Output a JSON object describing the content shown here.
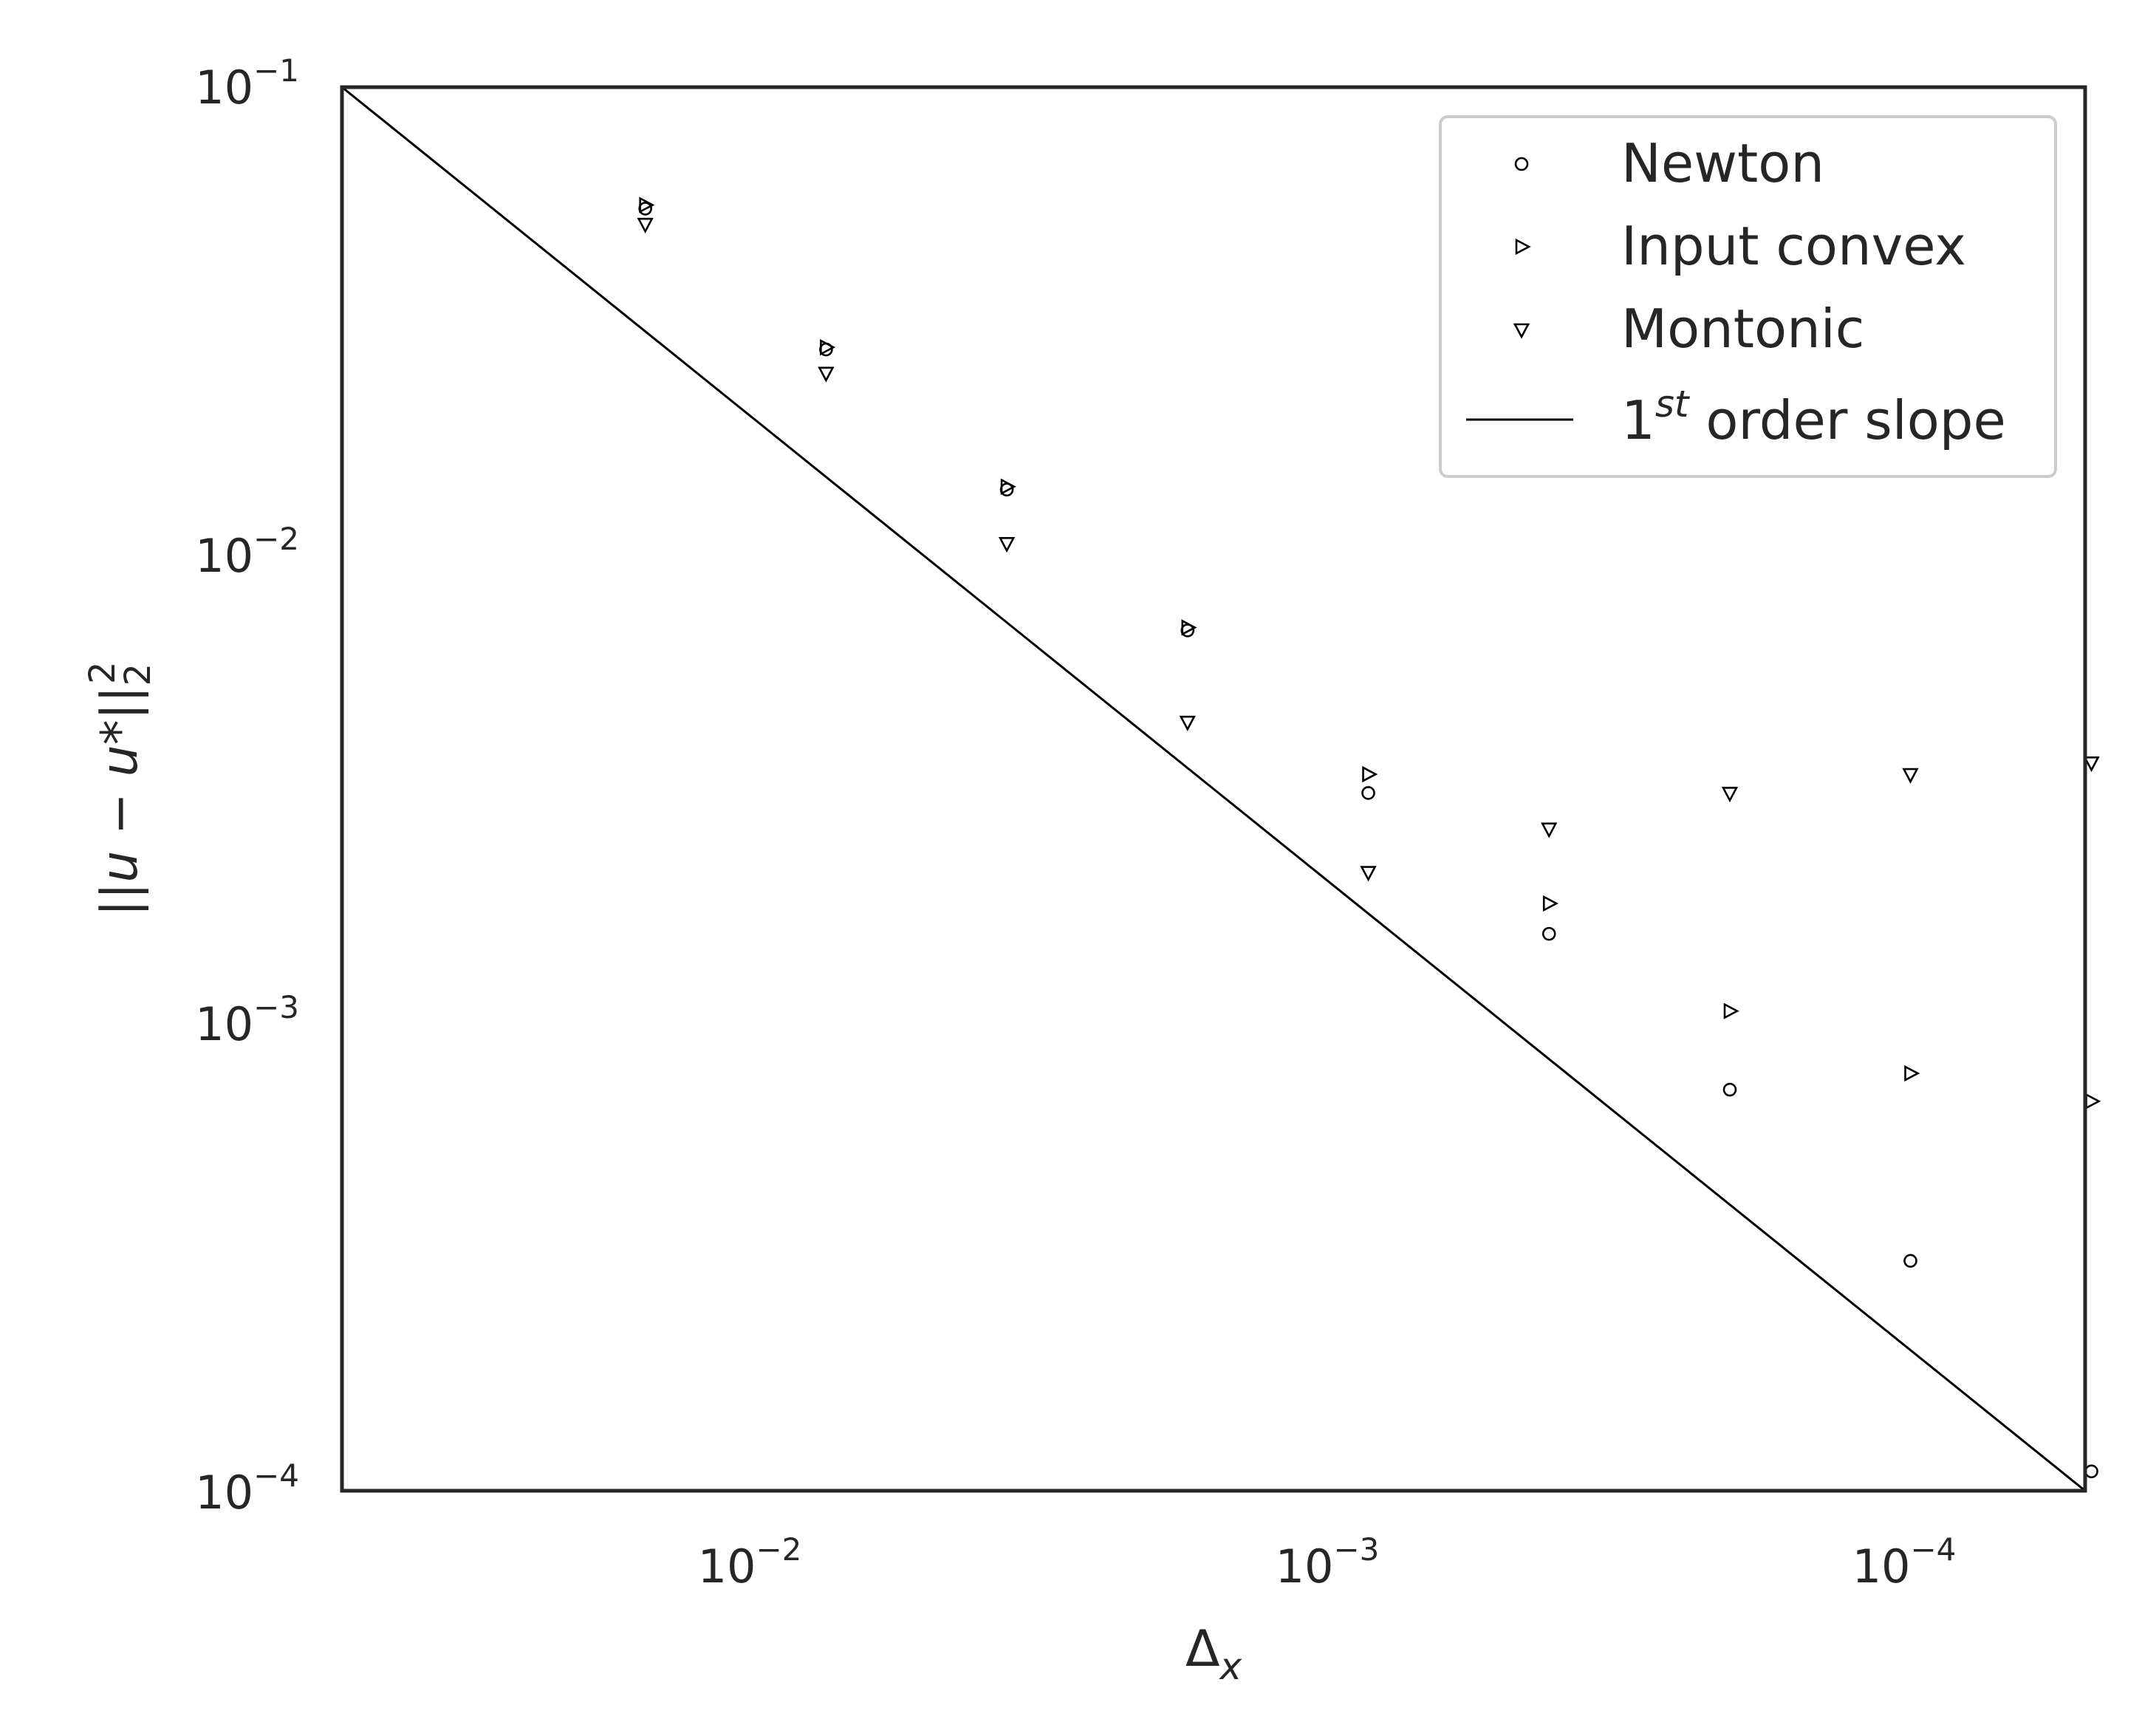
{
  "chart_data": {
    "type": "scatter",
    "title": "",
    "xlabel": {
      "base": "Δ",
      "sub": "x"
    },
    "ylabel": {
      "text": "||u − u*||",
      "sub": "2",
      "sup": "2"
    },
    "xscale": "log",
    "yscale": "log",
    "x_inverted": true,
    "xlim": [
      0.04,
      5e-05
    ],
    "ylim": [
      0.0001,
      0.1
    ],
    "grid": false,
    "legend_position": "top-right",
    "x_ticks": [
      {
        "value": 0.01,
        "base": "10",
        "exp": "−2"
      },
      {
        "value": 0.001,
        "base": "10",
        "exp": "−3"
      },
      {
        "value": 0.0001,
        "base": "10",
        "exp": "−4"
      }
    ],
    "y_ticks": [
      {
        "value": 0.1,
        "base": "10",
        "exp": "−1"
      },
      {
        "value": 0.01,
        "base": "10",
        "exp": "−2"
      },
      {
        "value": 0.001,
        "base": "10",
        "exp": "−3"
      },
      {
        "value": 0.0001,
        "base": "10",
        "exp": "−4"
      }
    ],
    "series": [
      {
        "name": "Newton",
        "marker": "circle",
        "points": [
          [
            0.0125,
            0.055
          ],
          [
            0.00625,
            0.0275
          ],
          [
            0.003125,
            0.0138
          ],
          [
            0.0015625,
            0.0069
          ],
          [
            0.00078125,
            0.0031
          ],
          [
            0.000390625,
            0.00155
          ],
          [
            0.0001953,
            0.00072
          ],
          [
            9.77e-05,
            0.00031
          ],
          [
            4.88e-05,
            0.00011
          ]
        ]
      },
      {
        "name": "Input convex",
        "marker": "triangle-right",
        "points": [
          [
            0.0125,
            0.056
          ],
          [
            0.00625,
            0.0278
          ],
          [
            0.003125,
            0.014
          ],
          [
            0.0015625,
            0.007
          ],
          [
            0.00078125,
            0.0034
          ],
          [
            0.000390625,
            0.0018
          ],
          [
            0.0001953,
            0.00106
          ],
          [
            9.77e-05,
            0.00078
          ],
          [
            4.88e-05,
            0.00068
          ]
        ]
      },
      {
        "name": "Montonic",
        "marker": "triangle-down",
        "points": [
          [
            0.0125,
            0.051
          ],
          [
            0.00625,
            0.0245
          ],
          [
            0.003125,
            0.0106
          ],
          [
            0.0015625,
            0.0044
          ],
          [
            0.00078125,
            0.0021
          ],
          [
            0.000390625,
            0.0026
          ],
          [
            0.0001953,
            0.0031
          ],
          [
            9.77e-05,
            0.0034
          ],
          [
            4.88e-05,
            0.0036
          ]
        ]
      }
    ],
    "reference_line": {
      "name_base": "1",
      "name_sup": "st",
      "name_rest": " order slope",
      "points": [
        [
          0.04,
          0.1
        ],
        [
          5e-05,
          0.0001
        ]
      ]
    }
  }
}
